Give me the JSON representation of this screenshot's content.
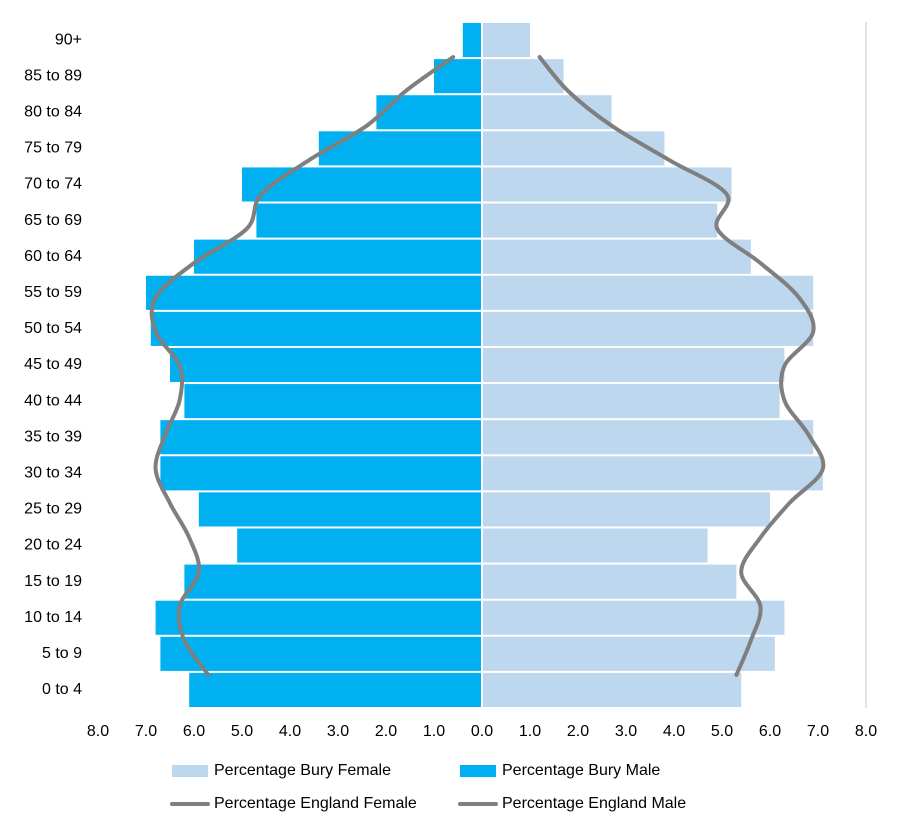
{
  "chart_data": {
    "type": "pyramid",
    "categories": [
      "0 to 4",
      "5 to 9",
      "10 to 14",
      "15 to 19",
      "20 to 24",
      "25 to 29",
      "30 to 34",
      "35 to 39",
      "40 to 44",
      "45 to 49",
      "50 to 54",
      "55 to 59",
      "60 to 64",
      "65 to 69",
      "70 to 74",
      "75 to 79",
      "80 to 84",
      "85 to 89",
      "90+"
    ],
    "series": [
      {
        "name": "Percentage Bury Female",
        "kind": "bar",
        "side": "right",
        "color": "#bdd7ee",
        "values": [
          5.4,
          6.1,
          6.3,
          5.3,
          4.7,
          6.0,
          7.1,
          6.9,
          6.2,
          6.3,
          6.9,
          6.9,
          5.6,
          4.9,
          5.2,
          3.8,
          2.7,
          1.7,
          1.0
        ]
      },
      {
        "name": "Percentage Bury Male",
        "kind": "bar",
        "side": "left",
        "color": "#00b0f0",
        "values": [
          6.1,
          6.7,
          6.8,
          6.2,
          5.1,
          5.9,
          6.7,
          6.7,
          6.2,
          6.5,
          6.9,
          7.0,
          6.0,
          4.7,
          5.0,
          3.4,
          2.2,
          1.0,
          0.4
        ]
      },
      {
        "name": "Percentage England Female",
        "kind": "line",
        "side": "right",
        "color": "#7f7f7f",
        "values": [
          5.3,
          5.6,
          5.8,
          5.4,
          5.8,
          6.4,
          7.1,
          6.8,
          6.3,
          6.3,
          6.9,
          6.6,
          5.8,
          4.9,
          5.1,
          3.9,
          2.7,
          1.8,
          1.2
        ]
      },
      {
        "name": "Percentage England Male",
        "kind": "line",
        "side": "left",
        "color": "#7f7f7f",
        "values": [
          5.7,
          6.2,
          6.3,
          5.9,
          6.1,
          6.5,
          6.8,
          6.6,
          6.3,
          6.3,
          6.8,
          6.8,
          6.0,
          4.9,
          4.6,
          3.6,
          2.4,
          1.6,
          0.6
        ]
      }
    ],
    "xlim": [
      0,
      8
    ],
    "male_xticks": [
      {
        "value": 8,
        "label": "8.0"
      },
      {
        "value": 7,
        "label": "7.0"
      },
      {
        "value": 6,
        "label": "6.0"
      },
      {
        "value": 5,
        "label": "5.0"
      },
      {
        "value": 4,
        "label": "4.0"
      },
      {
        "value": 3,
        "label": "3.0"
      },
      {
        "value": 2,
        "label": "2.0"
      },
      {
        "value": 1,
        "label": "1.0"
      }
    ],
    "female_xticks": [
      {
        "value": 0,
        "label": "0.0"
      },
      {
        "value": 1,
        "label": "1.0"
      },
      {
        "value": 2,
        "label": "2.0"
      },
      {
        "value": 3,
        "label": "3.0"
      },
      {
        "value": 4,
        "label": "4.0"
      },
      {
        "value": 5,
        "label": "5.0"
      },
      {
        "value": 6,
        "label": "6.0"
      },
      {
        "value": 7,
        "label": "7.0"
      },
      {
        "value": 8,
        "label": "8.0"
      }
    ]
  }
}
